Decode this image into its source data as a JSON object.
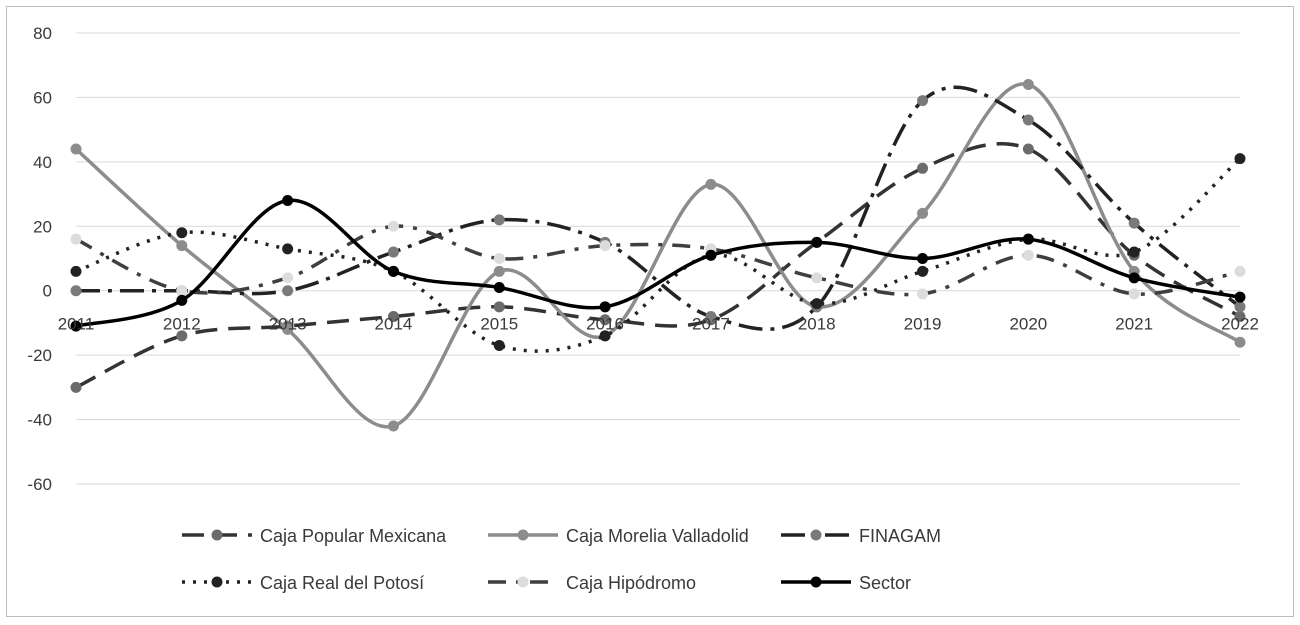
{
  "chart_data": {
    "type": "line",
    "title": "",
    "xlabel": "",
    "ylabel": "",
    "categories": [
      "2011",
      "2012",
      "2013",
      "2014",
      "2015",
      "2016",
      "2017",
      "2018",
      "2019",
      "2020",
      "2021",
      "2022"
    ],
    "ylim": [
      -60,
      80
    ],
    "yticks": [
      -60,
      -40,
      -20,
      0,
      20,
      40,
      60,
      80
    ],
    "grid": true,
    "legend": "bottom",
    "series": [
      {
        "name": "Caja Popular Mexicana",
        "values": [
          -30,
          -14,
          -11,
          -8,
          -5,
          -9,
          -9,
          15,
          38,
          44,
          11,
          -8
        ],
        "color": "#333333",
        "marker": "#6b6b6b",
        "dash": "22,11",
        "width": 3.5
      },
      {
        "name": "Caja Morelia Valladolid",
        "values": [
          44,
          14,
          -12,
          -42,
          6,
          -14,
          33,
          -5,
          24,
          64,
          6,
          -16
        ],
        "color": "#8c8c8c",
        "marker": "#8c8c8c",
        "dash": "",
        "width": 3.5
      },
      {
        "name": "FINAGAM",
        "values": [
          0,
          0,
          0,
          12,
          22,
          15,
          -8,
          -5,
          59,
          53,
          21,
          -5
        ],
        "color": "#222222",
        "marker": "#7a7a7a",
        "dash": "24,8,4,8",
        "width": 3.5
      },
      {
        "name": "Caja Real del Potosí",
        "values": [
          6,
          18,
          13,
          6,
          -17,
          -14,
          11,
          -4,
          6,
          16,
          12,
          41
        ],
        "color": "#222222",
        "marker": "#222222",
        "dash": "3,8",
        "width": 3.5
      },
      {
        "name": "Caja Hipódromo",
        "values": [
          16,
          0,
          4,
          20,
          10,
          14,
          13,
          4,
          -1,
          11,
          -1,
          6
        ],
        "color": "#3f3f3f",
        "marker": "#dcdcdc",
        "dash": "18,10,4,10",
        "width": 3.5
      },
      {
        "name": "Sector",
        "values": [
          -11,
          -3,
          28,
          6,
          1,
          -5,
          11,
          15,
          10,
          16,
          4,
          -2
        ],
        "color": "#000000",
        "marker": "#000000",
        "dash": "",
        "width": 3.5
      }
    ]
  }
}
